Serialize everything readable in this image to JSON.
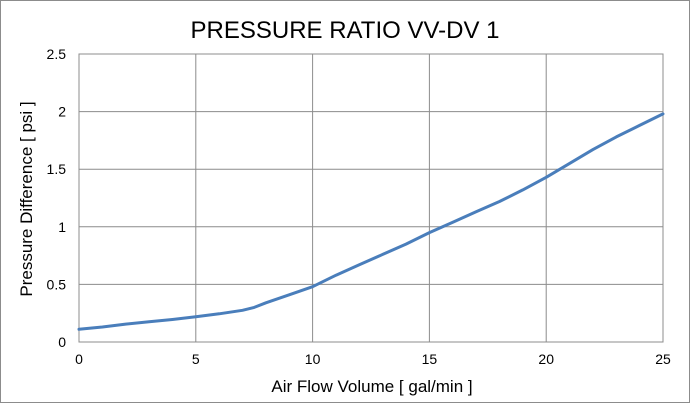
{
  "chart_data": {
    "type": "line",
    "title": "PRESSURE RATIO VV-DV 1",
    "xlabel": "Air Flow Volume [ gal/min ]",
    "ylabel": "Pressure Difference [ psi ]",
    "xlim": [
      0,
      25
    ],
    "ylim": [
      0,
      2.5
    ],
    "x_ticks": [
      0,
      5,
      10,
      15,
      20,
      25
    ],
    "y_ticks": [
      0,
      0.5,
      1,
      1.5,
      2,
      2.5
    ],
    "x_tick_labels": [
      "0",
      "5",
      "10",
      "15",
      "20",
      "25"
    ],
    "y_tick_labels": [
      "0",
      "0.5",
      "1",
      "1.5",
      "2",
      "2.5"
    ],
    "grid": true,
    "legend": "none",
    "series": [
      {
        "color": "#4a7ebb",
        "points": [
          {
            "x": 0,
            "y": 0.11
          },
          {
            "x": 1,
            "y": 0.13
          },
          {
            "x": 2,
            "y": 0.155
          },
          {
            "x": 3,
            "y": 0.175
          },
          {
            "x": 4,
            "y": 0.195
          },
          {
            "x": 5,
            "y": 0.22
          },
          {
            "x": 6,
            "y": 0.245
          },
          {
            "x": 7,
            "y": 0.275
          },
          {
            "x": 7.5,
            "y": 0.3
          },
          {
            "x": 8,
            "y": 0.34
          },
          {
            "x": 9,
            "y": 0.41
          },
          {
            "x": 10,
            "y": 0.48
          },
          {
            "x": 11,
            "y": 0.58
          },
          {
            "x": 12,
            "y": 0.67
          },
          {
            "x": 13,
            "y": 0.76
          },
          {
            "x": 14,
            "y": 0.85
          },
          {
            "x": 15,
            "y": 0.95
          },
          {
            "x": 16,
            "y": 1.04
          },
          {
            "x": 17,
            "y": 1.13
          },
          {
            "x": 18,
            "y": 1.22
          },
          {
            "x": 19,
            "y": 1.32
          },
          {
            "x": 20,
            "y": 1.43
          },
          {
            "x": 21,
            "y": 1.55
          },
          {
            "x": 22,
            "y": 1.67
          },
          {
            "x": 23,
            "y": 1.78
          },
          {
            "x": 24,
            "y": 1.88
          },
          {
            "x": 25,
            "y": 1.98
          }
        ]
      }
    ]
  }
}
